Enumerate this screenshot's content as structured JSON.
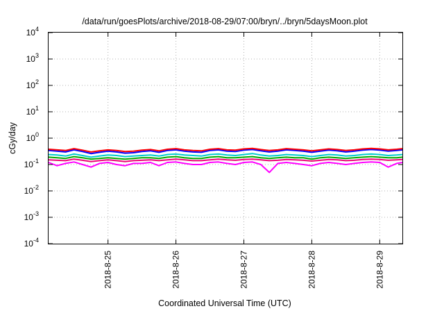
{
  "chart_data": {
    "type": "line",
    "title": "/data/run/goesPlots/archive/2018-08-29/07:00/bryn/../bryn/5daysMoon.plot",
    "xlabel": "Coordinated Universal Time (UTC)",
    "ylabel": "cGy/day",
    "yscale": "log",
    "ylim": [
      0.0001,
      10000
    ],
    "y_ticks": [
      {
        "base": "10",
        "exp": "-4"
      },
      {
        "base": "10",
        "exp": "-3"
      },
      {
        "base": "10",
        "exp": "-2"
      },
      {
        "base": "10",
        "exp": "-1"
      },
      {
        "base": "10",
        "exp": "0"
      },
      {
        "base": "10",
        "exp": "1"
      },
      {
        "base": "10",
        "exp": "2"
      },
      {
        "base": "10",
        "exp": "3"
      },
      {
        "base": "10",
        "exp": "4"
      }
    ],
    "xlim": [
      "2018-8-24 03:00",
      "2018-8-29 08:00"
    ],
    "x_ticks": [
      "2018-8-25",
      "2018-8-26",
      "2018-8-27",
      "2018-8-28",
      "2018-8-29"
    ],
    "grid": true,
    "x": [
      "2018-8-24 03:00",
      "2018-8-24 06:00",
      "2018-8-24 09:00",
      "2018-8-24 12:00",
      "2018-8-24 15:00",
      "2018-8-24 18:00",
      "2018-8-24 21:00",
      "2018-8-25 00:00",
      "2018-8-25 03:00",
      "2018-8-25 06:00",
      "2018-8-25 09:00",
      "2018-8-25 12:00",
      "2018-8-25 15:00",
      "2018-8-25 18:00",
      "2018-8-25 21:00",
      "2018-8-26 00:00",
      "2018-8-26 03:00",
      "2018-8-26 06:00",
      "2018-8-26 09:00",
      "2018-8-26 12:00",
      "2018-8-26 15:00",
      "2018-8-26 18:00",
      "2018-8-26 21:00",
      "2018-8-27 00:00",
      "2018-8-27 03:00",
      "2018-8-27 06:00",
      "2018-8-27 09:00",
      "2018-8-27 12:00",
      "2018-8-27 15:00",
      "2018-8-27 18:00",
      "2018-8-27 21:00",
      "2018-8-28 00:00",
      "2018-8-28 03:00",
      "2018-8-28 06:00",
      "2018-8-28 09:00",
      "2018-8-28 12:00",
      "2018-8-28 15:00",
      "2018-8-28 18:00",
      "2018-8-28 21:00",
      "2018-8-29 00:00",
      "2018-8-29 03:00",
      "2018-8-29 06:00",
      "2018-8-29 08:00"
    ],
    "series": [
      {
        "color": "#ff0000",
        "values": [
          0.38,
          0.36,
          0.34,
          0.4,
          0.35,
          0.3,
          0.33,
          0.36,
          0.34,
          0.31,
          0.32,
          0.35,
          0.37,
          0.33,
          0.38,
          0.4,
          0.36,
          0.34,
          0.33,
          0.38,
          0.4,
          0.36,
          0.35,
          0.39,
          0.41,
          0.37,
          0.34,
          0.36,
          0.4,
          0.38,
          0.36,
          0.33,
          0.36,
          0.39,
          0.37,
          0.34,
          0.36,
          0.39,
          0.41,
          0.39,
          0.36,
          0.38,
          0.4
        ]
      },
      {
        "color": "#0000ff",
        "values": [
          0.34,
          0.32,
          0.3,
          0.36,
          0.31,
          0.26,
          0.29,
          0.32,
          0.3,
          0.27,
          0.28,
          0.31,
          0.33,
          0.29,
          0.34,
          0.36,
          0.32,
          0.3,
          0.29,
          0.34,
          0.36,
          0.32,
          0.31,
          0.35,
          0.37,
          0.33,
          0.3,
          0.32,
          0.36,
          0.34,
          0.32,
          0.29,
          0.32,
          0.35,
          0.33,
          0.3,
          0.32,
          0.35,
          0.37,
          0.35,
          0.32,
          0.34,
          0.36
        ]
      },
      {
        "color": "#00cccc",
        "values": [
          0.24,
          0.23,
          0.21,
          0.25,
          0.22,
          0.19,
          0.21,
          0.23,
          0.22,
          0.2,
          0.21,
          0.22,
          0.23,
          0.21,
          0.24,
          0.25,
          0.23,
          0.22,
          0.21,
          0.24,
          0.25,
          0.23,
          0.22,
          0.24,
          0.26,
          0.23,
          0.21,
          0.22,
          0.24,
          0.23,
          0.22,
          0.2,
          0.22,
          0.24,
          0.23,
          0.21,
          0.22,
          0.24,
          0.25,
          0.24,
          0.22,
          0.23,
          0.24
        ]
      },
      {
        "color": "#00aa00",
        "values": [
          0.19,
          0.18,
          0.17,
          0.2,
          0.18,
          0.16,
          0.17,
          0.18,
          0.17,
          0.16,
          0.17,
          0.18,
          0.18,
          0.17,
          0.19,
          0.2,
          0.18,
          0.17,
          0.17,
          0.19,
          0.2,
          0.18,
          0.18,
          0.19,
          0.2,
          0.18,
          0.17,
          0.18,
          0.19,
          0.18,
          0.18,
          0.16,
          0.18,
          0.19,
          0.18,
          0.17,
          0.18,
          0.19,
          0.2,
          0.19,
          0.18,
          0.18,
          0.19
        ]
      },
      {
        "color": "#ee0077",
        "values": [
          0.15,
          0.145,
          0.14,
          0.16,
          0.145,
          0.13,
          0.14,
          0.15,
          0.14,
          0.13,
          0.14,
          0.145,
          0.15,
          0.14,
          0.15,
          0.16,
          0.15,
          0.14,
          0.14,
          0.15,
          0.16,
          0.15,
          0.145,
          0.155,
          0.16,
          0.15,
          0.14,
          0.145,
          0.155,
          0.15,
          0.145,
          0.135,
          0.145,
          0.155,
          0.15,
          0.14,
          0.145,
          0.155,
          0.16,
          0.155,
          0.145,
          0.15,
          0.155
        ]
      },
      {
        "color": "#ff00ff",
        "values": [
          0.12,
          0.09,
          0.11,
          0.125,
          0.1,
          0.08,
          0.11,
          0.12,
          0.1,
          0.09,
          0.11,
          0.11,
          0.12,
          0.09,
          0.12,
          0.125,
          0.11,
          0.1,
          0.1,
          0.12,
          0.125,
          0.11,
          0.1,
          0.12,
          0.125,
          0.1,
          0.05,
          0.11,
          0.12,
          0.11,
          0.1,
          0.09,
          0.11,
          0.12,
          0.11,
          0.1,
          0.11,
          0.12,
          0.125,
          0.12,
          0.08,
          0.11,
          0.12
        ]
      }
    ]
  }
}
